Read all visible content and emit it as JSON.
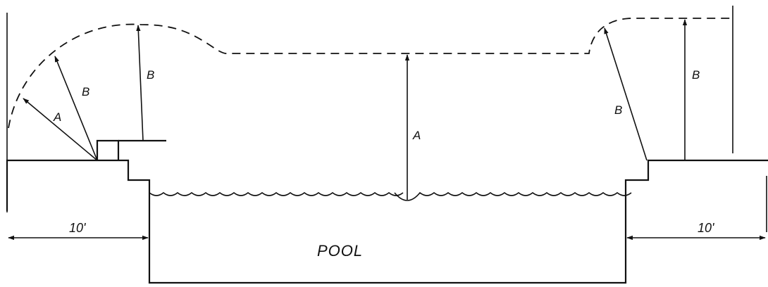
{
  "labels": {
    "pool": "POOL",
    "dim_left": "10'",
    "dim_right": "10'",
    "radius_a_left": "A",
    "radius_b_left": "B",
    "radius_b_left_top": "B",
    "height_a_center": "A",
    "radius_b_right": "B",
    "height_b_right": "B"
  }
}
